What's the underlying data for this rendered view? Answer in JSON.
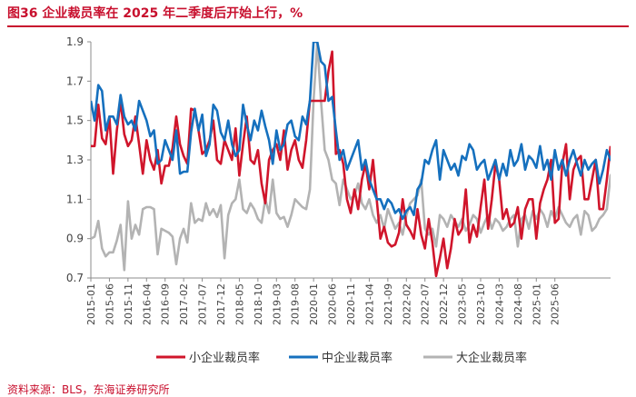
{
  "header": {
    "title": "图36  企业裁员率在 2025 年二季度后开始上行，%"
  },
  "footer": {
    "source": "资料来源：BLS，东海证券研究所"
  },
  "chart_data": {
    "type": "line",
    "title": "企业裁员率在 2025 年二季度后开始上行，%",
    "xlabel": "",
    "ylabel": "",
    "ylim": [
      0.7,
      1.9
    ],
    "yticks": [
      0.7,
      0.9,
      1.1,
      1.3,
      1.5,
      1.7,
      1.9
    ],
    "ytick_labels": [
      "0.7",
      "0.9",
      "1.1",
      "1.3",
      "1.5",
      "1.7",
      "1.9"
    ],
    "x_start": "2015-01",
    "x_end": "2025-08",
    "xtick_labels": [
      "2015-01",
      "2015-06",
      "2015-11",
      "2016-04",
      "2016-09",
      "2017-02",
      "2017-07",
      "2017-12",
      "2018-05",
      "2018-10",
      "2019-03",
      "2019-08",
      "2020-01",
      "2020-06",
      "2020-11",
      "2021-04",
      "2021-09",
      "2022-02",
      "2022-07",
      "2022-12",
      "2023-05",
      "2023-10",
      "2024-03",
      "2024-08",
      "2025-01",
      "2025-06"
    ],
    "grid": false,
    "legend_position": "bottom",
    "series": [
      {
        "name": "小企业裁员率",
        "color": "#d0152b",
        "values": [
          1.37,
          1.37,
          1.58,
          1.41,
          1.38,
          1.52,
          1.23,
          1.45,
          1.6,
          1.43,
          1.37,
          1.4,
          1.52,
          1.38,
          1.23,
          1.4,
          1.3,
          1.25,
          1.35,
          1.18,
          1.27,
          1.27,
          1.36,
          1.52,
          1.38,
          1.32,
          1.28,
          1.56,
          1.55,
          1.45,
          1.33,
          1.35,
          1.4,
          1.5,
          1.3,
          1.28,
          1.4,
          1.35,
          1.3,
          1.46,
          1.22,
          1.38,
          1.52,
          1.3,
          1.28,
          1.35,
          1.18,
          1.08,
          1.3,
          1.35,
          1.38,
          1.3,
          1.45,
          1.25,
          1.35,
          1.4,
          1.3,
          1.26,
          1.4,
          1.6,
          1.6,
          1.6,
          1.6,
          1.6,
          1.75,
          1.85,
          1.33,
          1.35,
          1.28,
          1.1,
          1.03,
          1.15,
          1.05,
          1.2,
          1.28,
          1.15,
          1.3,
          1.1,
          0.9,
          0.96,
          0.88,
          0.86,
          0.87,
          0.93,
          1.1,
          0.97,
          0.94,
          0.9,
          1.05,
          0.92,
          0.85,
          1.0,
          0.88,
          0.71,
          0.8,
          0.9,
          0.75,
          0.85,
          1.0,
          0.92,
          0.95,
          1.15,
          0.88,
          0.97,
          0.91,
          1.06,
          1.2,
          0.95,
          1.1,
          1.28,
          1.2,
          1.0,
          1.05,
          0.96,
          0.98,
          1.06,
          0.9,
          1.05,
          1.1,
          1.1,
          0.9,
          1.08,
          1.15,
          1.2,
          1.3,
          0.98,
          1.0,
          1.28,
          1.38,
          1.1,
          1.25,
          1.3,
          1.32,
          1.1,
          1.1,
          1.2,
          1.3,
          1.05,
          1.05,
          1.2,
          1.37
        ]
      },
      {
        "name": "中企业裁员率",
        "color": "#1570be",
        "values": [
          1.6,
          1.5,
          1.68,
          1.65,
          1.45,
          1.52,
          1.52,
          1.48,
          1.63,
          1.52,
          1.48,
          1.5,
          1.45,
          1.6,
          1.55,
          1.5,
          1.42,
          1.45,
          1.28,
          1.3,
          1.4,
          1.35,
          1.3,
          1.45,
          1.23,
          1.24,
          1.24,
          1.44,
          1.56,
          1.45,
          1.53,
          1.32,
          1.38,
          1.58,
          1.55,
          1.44,
          1.4,
          1.5,
          1.38,
          1.32,
          1.35,
          1.58,
          1.48,
          1.4,
          1.5,
          1.45,
          1.55,
          1.47,
          1.4,
          1.28,
          1.45,
          1.35,
          1.38,
          1.48,
          1.5,
          1.42,
          1.4,
          1.52,
          1.48,
          1.6,
          1.9,
          1.9,
          1.8,
          1.78,
          1.6,
          1.62,
          1.45,
          1.3,
          1.35,
          1.25,
          1.3,
          1.35,
          1.4,
          1.25,
          1.3,
          1.2,
          1.15,
          1.1,
          1.1,
          1.05,
          1.1,
          1.08,
          1.03,
          1.05,
          1.0,
          1.04,
          1.06,
          1.02,
          1.15,
          1.18,
          1.3,
          1.28,
          1.35,
          1.4,
          1.2,
          1.35,
          1.3,
          1.25,
          1.28,
          1.22,
          1.32,
          1.3,
          1.38,
          1.35,
          1.25,
          1.28,
          1.3,
          1.2,
          1.25,
          1.3,
          1.2,
          1.28,
          1.22,
          1.35,
          1.27,
          1.3,
          1.38,
          1.25,
          1.32,
          1.3,
          1.26,
          1.37,
          1.25,
          1.3,
          1.2,
          1.35,
          1.25,
          1.3,
          1.22,
          1.3,
          1.35,
          1.28,
          1.22,
          1.3,
          1.25,
          1.28,
          1.3,
          1.18,
          1.25,
          1.35,
          1.3,
          1.34
        ]
      },
      {
        "name": "大企业裁员率",
        "color": "#b3b3b3",
        "values": [
          0.9,
          0.91,
          0.99,
          0.85,
          0.81,
          0.83,
          0.83,
          0.89,
          0.97,
          0.74,
          1.09,
          0.9,
          0.97,
          0.92,
          1.05,
          1.06,
          1.06,
          1.05,
          0.82,
          0.95,
          0.94,
          0.93,
          0.91,
          0.77,
          0.9,
          0.95,
          0.88,
          1.08,
          0.98,
          1.0,
          0.99,
          1.08,
          1.02,
          1.05,
          1.01,
          1.07,
          0.8,
          1.02,
          1.08,
          1.1,
          1.2,
          1.05,
          1.03,
          1.08,
          1.05,
          1.0,
          0.98,
          1.1,
          1.03,
          1.2,
          1.03,
          1.0,
          1.01,
          0.96,
          1.02,
          1.1,
          1.08,
          1.06,
          1.05,
          1.15,
          1.6,
          1.9,
          1.6,
          1.35,
          1.3,
          1.2,
          1.18,
          1.07,
          1.2,
          1.15,
          1.1,
          1.12,
          1.18,
          1.08,
          1.05,
          1.1,
          1.02,
          0.98,
          1.02,
          0.95,
          1.05,
          1.0,
          0.95,
          0.98,
          0.92,
          1.02,
          1.08,
          1.1,
          1.12,
          1.2,
          0.95,
          0.92,
          0.95,
          0.86,
          1.02,
          1.0,
          0.96,
          1.02,
          0.99,
          0.96,
          1.0,
          0.94,
          0.97,
          1.02,
          1.0,
          0.93,
          0.98,
          1.02,
          0.95,
          1.0,
          0.98,
          0.94,
          0.96,
          1.0,
          1.02,
          0.86,
          1.0,
          1.02,
          0.95,
          1.04,
          1.0,
          1.05,
          1.02,
          0.96,
          1.04,
          1.0,
          1.06,
          1.02,
          0.98,
          0.96,
          1.0,
          1.02,
          0.92,
          1.04,
          1.02,
          0.94,
          0.96,
          1.0,
          1.02,
          1.05,
          1.22,
          1.25,
          1.08
        ]
      }
    ]
  }
}
